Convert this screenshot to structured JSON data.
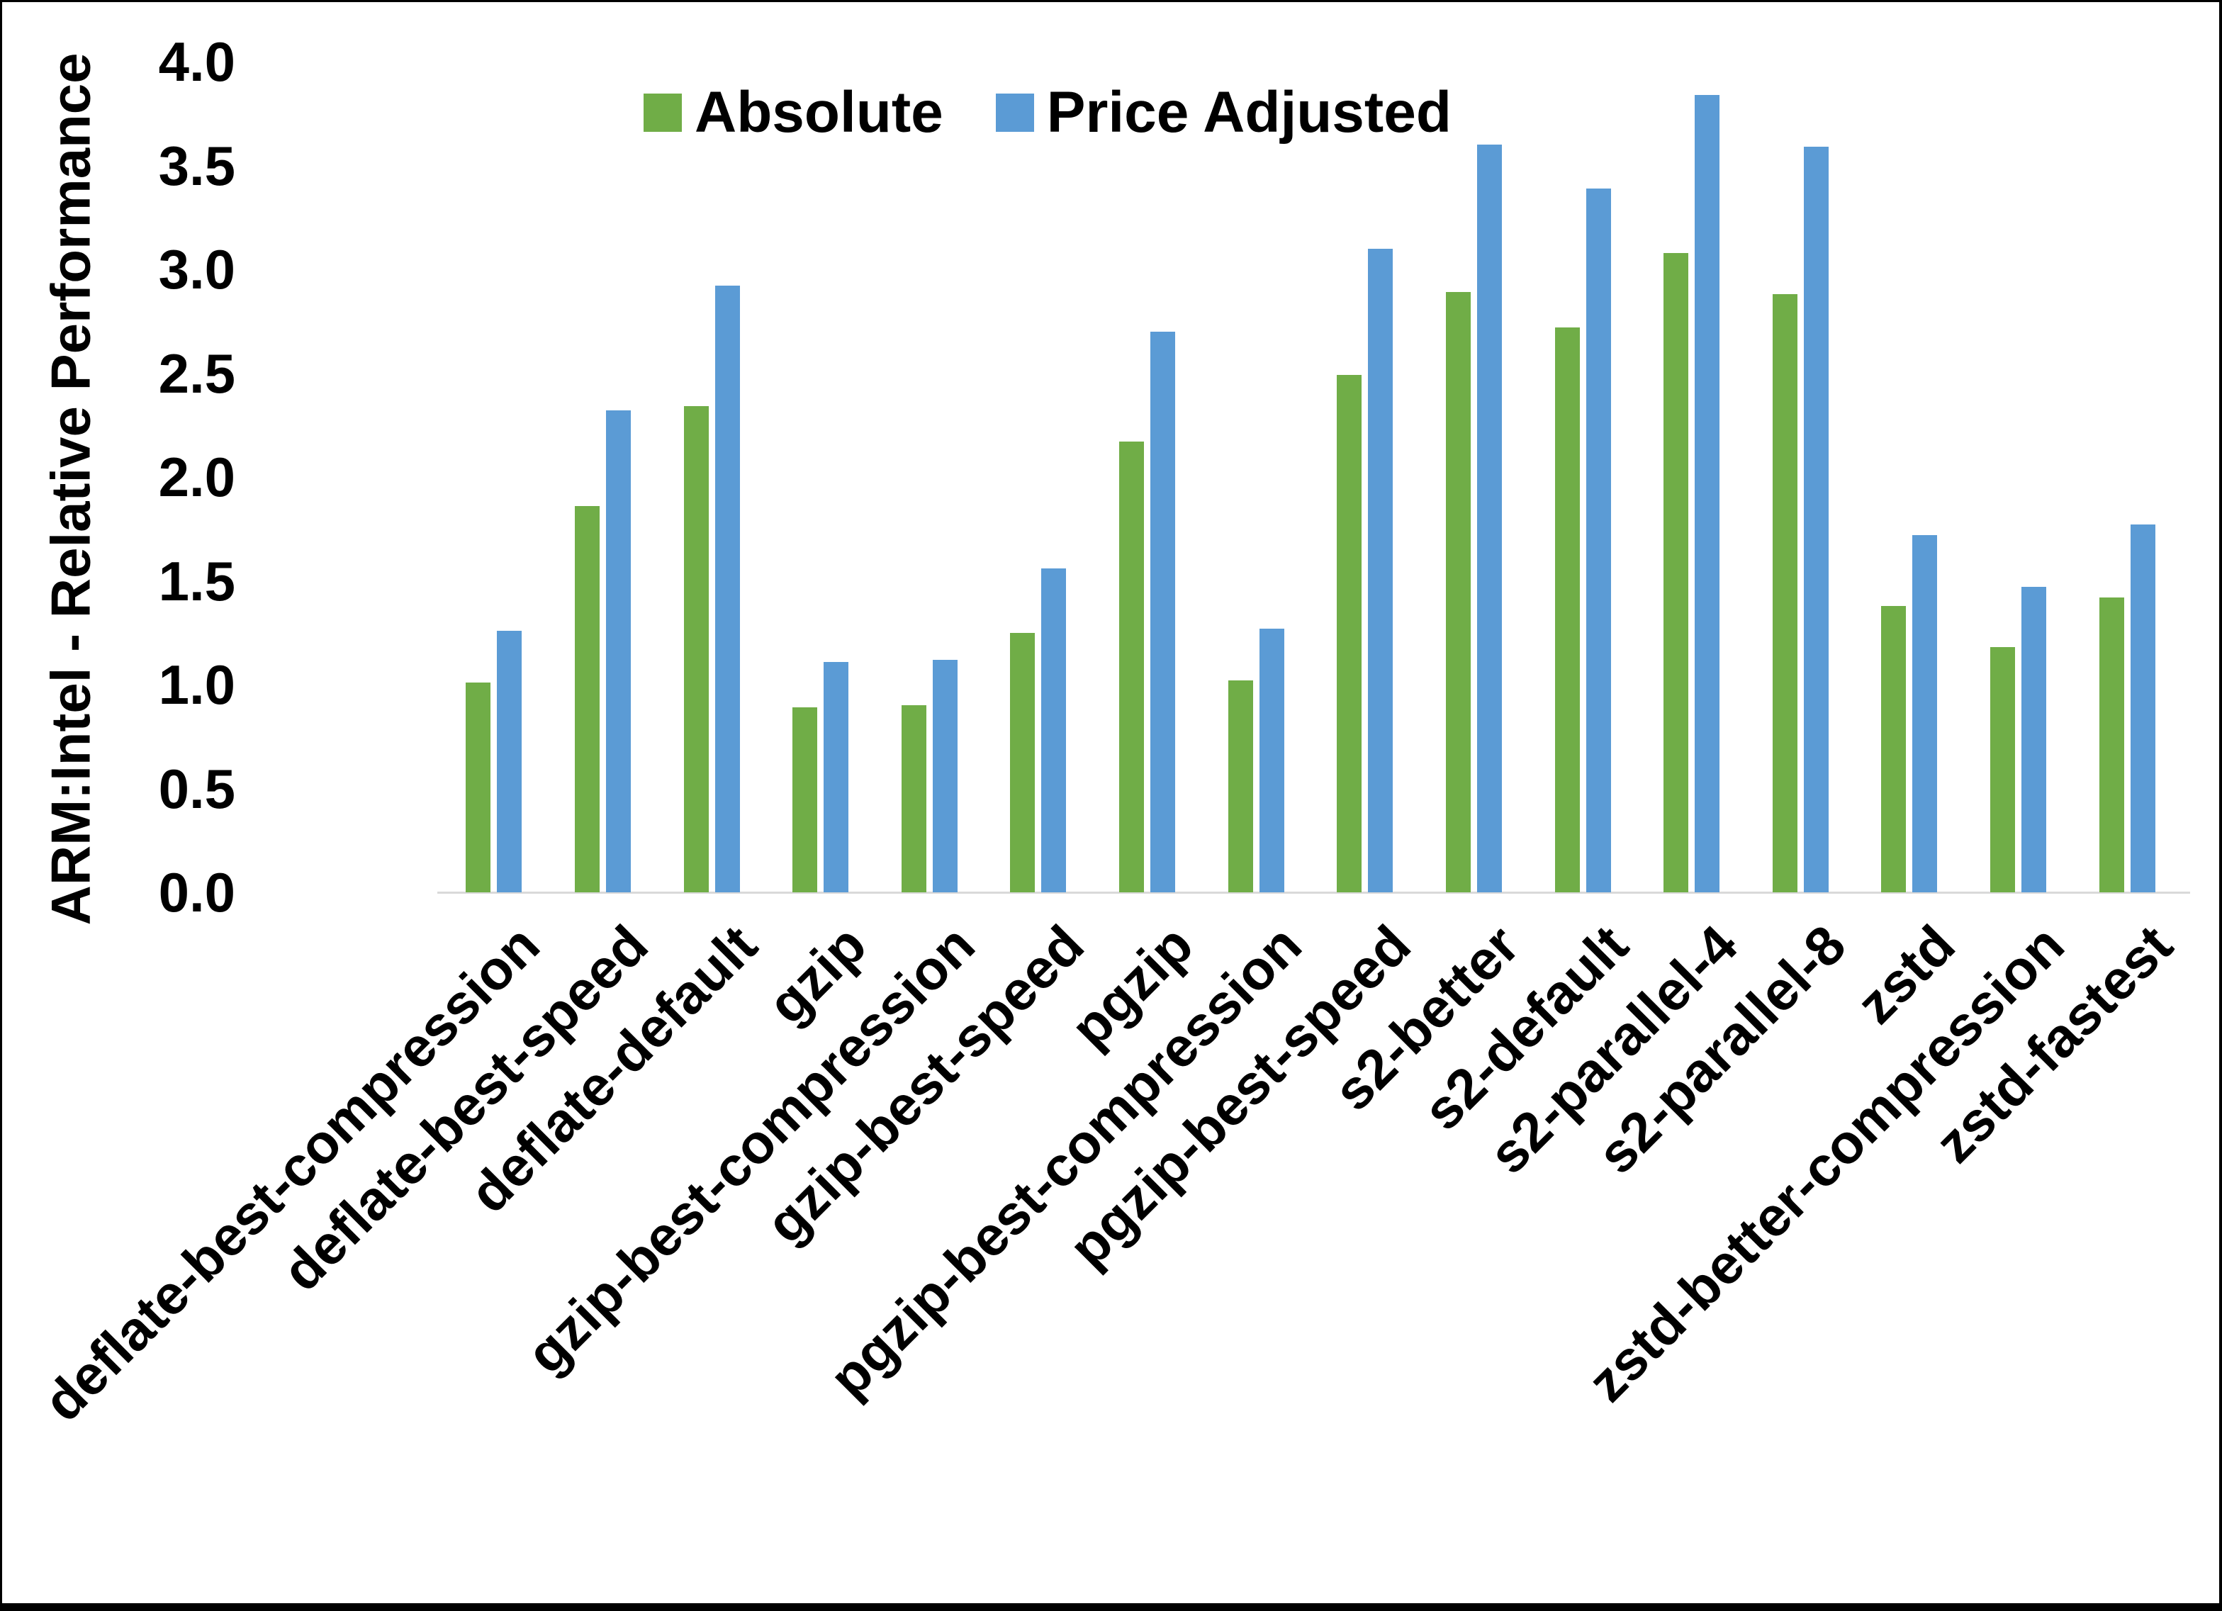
{
  "figure": {
    "ylabel": "ARM:Intel - Relative Performance"
  },
  "chart_data": {
    "type": "bar",
    "title": "",
    "xlabel": "",
    "ylabel": "ARM:Intel - Relative Performance",
    "ylim": [
      0.0,
      4.0
    ],
    "ytick_step": 0.5,
    "ytick_decimals": 1,
    "grid": false,
    "legend_position": "top-center",
    "axis_line_color": "#d9d9d9",
    "categories": [
      "deflate-best-compression",
      "deflate-best-speed",
      "deflate-default",
      "gzip",
      "gzip-best-compression",
      "gzip-best-speed",
      "pgzip",
      "pgzip-best-compression",
      "pgzip-best-speed",
      "s2-better",
      "s2-default",
      "s2-parallel-4",
      "s2-parallel-8",
      "zstd",
      "zstd-better-compression",
      "zstd-fastest"
    ],
    "series": [
      {
        "name": "Absolute",
        "color": "#70AD47",
        "values": [
          1.01,
          1.86,
          2.34,
          0.89,
          0.9,
          1.25,
          2.17,
          1.02,
          2.49,
          2.89,
          2.72,
          3.08,
          2.88,
          1.38,
          1.18,
          1.42
        ]
      },
      {
        "name": "Price Adjusted",
        "color": "#5B9BD5",
        "values": [
          1.26,
          2.32,
          2.92,
          1.11,
          1.12,
          1.56,
          2.7,
          1.27,
          3.1,
          3.6,
          3.39,
          3.84,
          3.59,
          1.72,
          1.47,
          1.77
        ]
      }
    ]
  }
}
